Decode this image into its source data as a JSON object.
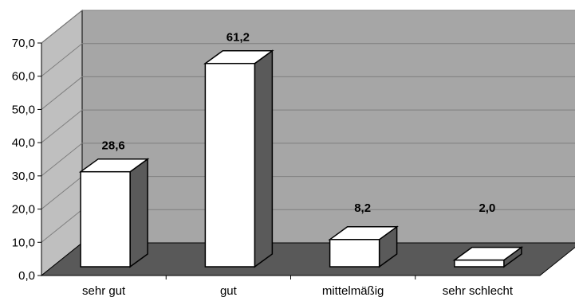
{
  "chart_data": {
    "type": "bar",
    "title": "",
    "xlabel": "",
    "ylabel": "",
    "categories": [
      "sehr gut",
      "gut",
      "mittelmäßig",
      "sehr schlecht"
    ],
    "values": [
      28.6,
      61.2,
      8.2,
      2.0
    ],
    "data_labels": [
      "28,6",
      "61,2",
      "8,2",
      "2,0"
    ],
    "ylim": [
      0,
      70
    ],
    "yticks": [
      0,
      10,
      20,
      30,
      40,
      50,
      60,
      70
    ],
    "ytick_labels": [
      "0,0",
      "10,0",
      "20,0",
      "30,0",
      "40,0",
      "50,0",
      "60,0",
      "70,0"
    ],
    "grid": true,
    "legend": "none",
    "style": "3d-column",
    "colors": {
      "bar_front": "#ffffff",
      "bar_top": "#ffffff",
      "bar_side": "#5a5a5a",
      "back_wall": "#a6a6a6",
      "side_wall": "#bfbfbf",
      "floor": "#595959",
      "gridline": "#7f7f7f"
    }
  }
}
